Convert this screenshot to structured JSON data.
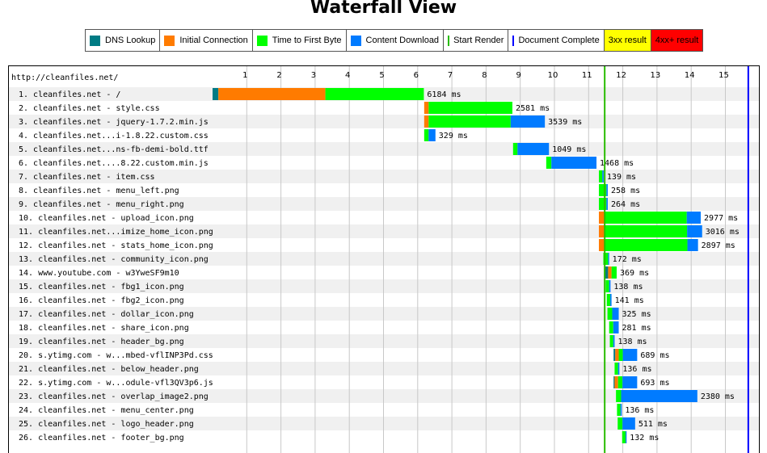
{
  "title": "Waterfall View",
  "legend": [
    {
      "label": "DNS Lookup",
      "kind": "swatch",
      "color": "#007B84"
    },
    {
      "label": "Initial Connection",
      "kind": "swatch",
      "color": "#FF7B00"
    },
    {
      "label": "Time to First Byte",
      "kind": "swatch",
      "color": "#00FF00"
    },
    {
      "label": "Content Download",
      "kind": "swatch",
      "color": "#007BFF"
    },
    {
      "label": "Start Render",
      "kind": "line",
      "color": "#28BC00"
    },
    {
      "label": "Document Complete",
      "kind": "line",
      "color": "#0000FF"
    },
    {
      "label": "3xx result",
      "kind": "box",
      "color": "#FFFF00"
    },
    {
      "label": "4xx+ result",
      "kind": "box",
      "color": "#FF0000"
    }
  ],
  "chart_data": {
    "type": "waterfall",
    "page_url": "http://cleanfiles.net/",
    "x_unit": "seconds",
    "xlim": [
      0,
      15.9
    ],
    "ticks": [
      "1",
      "2",
      "3",
      "4",
      "5",
      "6",
      "7",
      "8",
      "9",
      "10",
      "11",
      "12",
      "13",
      "14",
      "15"
    ],
    "start_render": 11.47,
    "document_complete": 15.67,
    "colors": {
      "dns": "#007B84",
      "connect": "#FF7B00",
      "ttfb": "#00FF00",
      "download": "#007BFF"
    },
    "requests": [
      {
        "label": "1. cleanfiles.net - /",
        "start": 0.0,
        "dns": 0.17,
        "connect": 3.13,
        "ttfb": 2.88,
        "download": 0.0,
        "time": "6184 ms"
      },
      {
        "label": "2. cleanfiles.net - style.css",
        "start": 6.19,
        "dns": 0,
        "connect": 0.13,
        "ttfb": 2.45,
        "download": 0.0,
        "time": "2581 ms"
      },
      {
        "label": "3. cleanfiles.net - jquery-1.7.2.min.js",
        "start": 6.19,
        "dns": 0,
        "connect": 0.13,
        "ttfb": 2.4,
        "download": 1.0,
        "time": "3539 ms"
      },
      {
        "label": "4. cleanfiles.net...i-1.8.22.custom.css",
        "start": 6.19,
        "dns": 0,
        "connect": 0,
        "ttfb": 0.13,
        "download": 0.2,
        "time": "329 ms"
      },
      {
        "label": "5. cleanfiles.net...ns-fb-demi-bold.ttf",
        "start": 8.79,
        "dns": 0,
        "connect": 0,
        "ttfb": 0.13,
        "download": 0.92,
        "time": "1049 ms"
      },
      {
        "label": "6. cleanfiles.net....8.22.custom.min.js",
        "start": 9.76,
        "dns": 0,
        "connect": 0,
        "ttfb": 0.15,
        "download": 1.32,
        "time": "1468 ms"
      },
      {
        "label": "7. cleanfiles.net - item.css",
        "start": 11.3,
        "dns": 0,
        "connect": 0,
        "ttfb": 0.1,
        "download": 0.04,
        "time": "139 ms"
      },
      {
        "label": "8. cleanfiles.net - menu_left.png",
        "start": 11.3,
        "dns": 0,
        "connect": 0,
        "ttfb": 0.22,
        "download": 0.04,
        "time": "258 ms"
      },
      {
        "label": "9. cleanfiles.net - menu_right.png",
        "start": 11.3,
        "dns": 0,
        "connect": 0,
        "ttfb": 0.22,
        "download": 0.04,
        "time": "264 ms"
      },
      {
        "label": "10. cleanfiles.net - upload_icon.png",
        "start": 11.3,
        "dns": 0,
        "connect": 0.16,
        "ttfb": 2.41,
        "download": 0.41,
        "time": "2977 ms"
      },
      {
        "label": "11. cleanfiles.net...imize_home_icon.png",
        "start": 11.3,
        "dns": 0,
        "connect": 0.16,
        "ttfb": 2.42,
        "download": 0.44,
        "time": "3016 ms"
      },
      {
        "label": "12. cleanfiles.net - stats_home_icon.png",
        "start": 11.3,
        "dns": 0,
        "connect": 0.16,
        "ttfb": 2.43,
        "download": 0.31,
        "time": "2897 ms"
      },
      {
        "label": "13. cleanfiles.net - community_icon.png",
        "start": 11.43,
        "dns": 0,
        "connect": 0,
        "ttfb": 0.14,
        "download": 0.03,
        "time": "172 ms"
      },
      {
        "label": "14. www.youtube.com - w3YweSF9m10",
        "start": 11.45,
        "dns": 0.12,
        "connect": 0.1,
        "ttfb": 0.15,
        "download": 0.0,
        "time": "369 ms"
      },
      {
        "label": "15. cleanfiles.net - fbg1_icon.png",
        "start": 11.5,
        "dns": 0,
        "connect": 0,
        "ttfb": 0.1,
        "download": 0.04,
        "time": "138 ms"
      },
      {
        "label": "16. cleanfiles.net - fbg2_icon.png",
        "start": 11.53,
        "dns": 0,
        "connect": 0,
        "ttfb": 0.1,
        "download": 0.04,
        "time": "141 ms"
      },
      {
        "label": "17. cleanfiles.net - dollar_icon.png",
        "start": 11.55,
        "dns": 0,
        "connect": 0,
        "ttfb": 0.14,
        "download": 0.19,
        "time": "325 ms"
      },
      {
        "label": "18. cleanfiles.net - share_icon.png",
        "start": 11.6,
        "dns": 0,
        "connect": 0,
        "ttfb": 0.12,
        "download": 0.16,
        "time": "281 ms"
      },
      {
        "label": "19. cleanfiles.net - header_bg.png",
        "start": 11.62,
        "dns": 0,
        "connect": 0,
        "ttfb": 0.1,
        "download": 0.04,
        "time": "138 ms"
      },
      {
        "label": "20. s.ytimg.com - w...mbed-vflINP3Pd.css",
        "start": 11.73,
        "dns": 0.05,
        "connect": 0.1,
        "ttfb": 0.12,
        "download": 0.42,
        "time": "689 ms"
      },
      {
        "label": "21. cleanfiles.net - below_header.png",
        "start": 11.76,
        "dns": 0,
        "connect": 0,
        "ttfb": 0.1,
        "download": 0.04,
        "time": "136 ms"
      },
      {
        "label": "22. s.ytimg.com - w...odule-vfl3QV3p6.js",
        "start": 11.73,
        "dns": 0.03,
        "connect": 0.1,
        "ttfb": 0.13,
        "download": 0.43,
        "time": "693 ms"
      },
      {
        "label": "23. cleanfiles.net - overlap_image2.png",
        "start": 11.8,
        "dns": 0,
        "connect": 0,
        "ttfb": 0.15,
        "download": 2.23,
        "time": "2380 ms"
      },
      {
        "label": "24. cleanfiles.net - menu_center.png",
        "start": 11.83,
        "dns": 0,
        "connect": 0,
        "ttfb": 0.1,
        "download": 0.04,
        "time": "136 ms"
      },
      {
        "label": "25. cleanfiles.net - logo_header.png",
        "start": 11.85,
        "dns": 0,
        "connect": 0,
        "ttfb": 0.14,
        "download": 0.37,
        "time": "511 ms"
      },
      {
        "label": "26. cleanfiles.net - footer_bg.png",
        "start": 11.98,
        "dns": 0,
        "connect": 0,
        "ttfb": 0.1,
        "download": 0.03,
        "time": "132 ms"
      }
    ]
  }
}
